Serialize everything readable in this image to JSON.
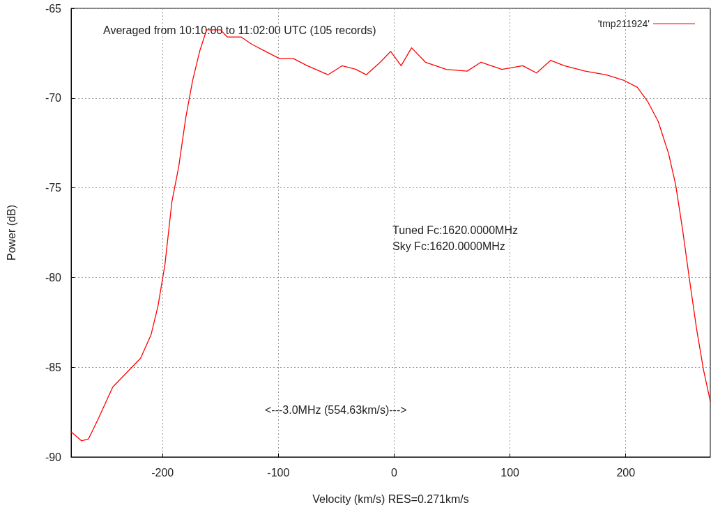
{
  "chart_data": {
    "type": "line",
    "xlabel": "Velocity (km/s) RES=0.271km/s",
    "ylabel": "Power (dB)",
    "annotations": [
      "Averaged from 10:10:00 to 11:02:00 UTC (105 records)",
      "Tuned Fc:1620.0000MHz",
      "Sky Fc:1620.0000MHz",
      "<---3.0MHz (554.63km/s)--->"
    ],
    "xlim": [
      -279,
      273
    ],
    "xticks": [
      -200,
      -100,
      0,
      100,
      200
    ],
    "ylim": [
      -90,
      -65
    ],
    "yticks": [
      -90,
      -85,
      -80,
      -75,
      -70,
      -65
    ],
    "grid": true,
    "legend": "top right",
    "marker": "none",
    "line_style": "solid",
    "series": [
      {
        "name": "'tmp211924'",
        "color": "#ff0000",
        "x": [
          -279,
          -270,
          -264,
          -255,
          -243,
          -231,
          -219,
          -210,
          -204,
          -198,
          -192,
          -186,
          -180,
          -174,
          -168,
          -162,
          -159,
          -150,
          -144,
          -132,
          -123,
          -111,
          -99,
          -87,
          -75,
          -57,
          -45,
          -33,
          -24,
          -12,
          -3,
          6,
          15,
          27,
          45,
          63,
          75,
          93,
          111,
          123,
          135,
          147,
          165,
          183,
          198,
          210,
          219,
          228,
          237,
          243,
          249,
          255,
          261,
          267,
          273
        ],
        "values": [
          -88.6,
          -89.1,
          -89.0,
          -87.8,
          -86.1,
          -85.3,
          -84.5,
          -83.2,
          -81.6,
          -79.3,
          -75.8,
          -73.8,
          -71.1,
          -69.0,
          -67.4,
          -66.2,
          -66.2,
          -66.2,
          -66.6,
          -66.6,
          -67.0,
          -67.4,
          -67.8,
          -67.8,
          -68.2,
          -68.7,
          -68.2,
          -68.4,
          -68.7,
          -68.0,
          -67.4,
          -68.2,
          -67.2,
          -68.0,
          -68.4,
          -68.5,
          -68.0,
          -68.4,
          -68.2,
          -68.6,
          -67.9,
          -68.2,
          -68.5,
          -68.7,
          -69.0,
          -69.4,
          -70.2,
          -71.3,
          -73.1,
          -74.8,
          -77.3,
          -80.1,
          -82.8,
          -85.1,
          -86.9
        ]
      }
    ]
  }
}
